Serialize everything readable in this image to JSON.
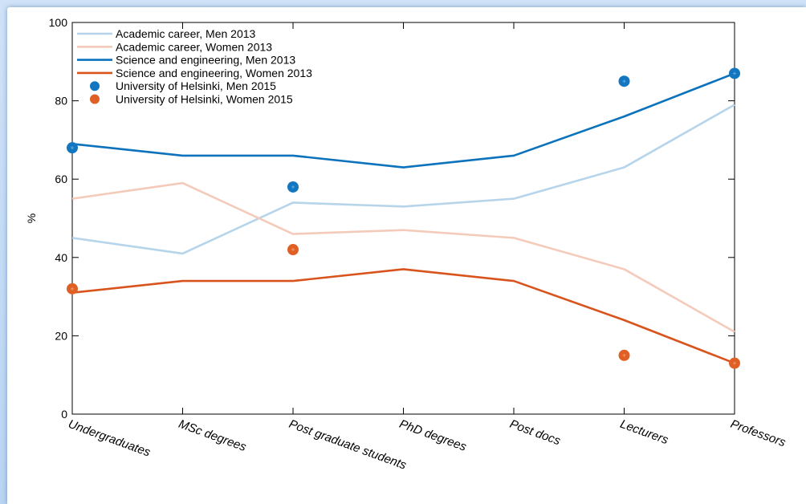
{
  "chart_data": {
    "type": "line",
    "ylabel": "%",
    "ylim": [
      0,
      100
    ],
    "yticks": [
      0,
      20,
      40,
      60,
      80,
      100
    ],
    "categories": [
      "Undergraduates",
      "MSc degrees",
      "Post graduate students",
      "PhD degrees",
      "Post docs",
      "Lecturers",
      "Professors"
    ],
    "legend_position": "top-left",
    "series": [
      {
        "name": "Academic career, Men 2013",
        "kind": "line",
        "color": "#b6d4ea",
        "values": [
          45,
          41,
          54,
          53,
          55,
          63,
          79
        ]
      },
      {
        "name": "Academic career, Women 2013",
        "kind": "line",
        "color": "#f4cbbb",
        "values": [
          55,
          59,
          46,
          47,
          45,
          37,
          21
        ]
      },
      {
        "name": "Science and engineering, Men 2013",
        "kind": "line",
        "color": "#0b72bb",
        "values": [
          69,
          66,
          66,
          63,
          66,
          76,
          87
        ]
      },
      {
        "name": "Science and engineering, Women 2013",
        "kind": "line",
        "color": "#d9541d",
        "values": [
          31,
          34,
          34,
          37,
          34,
          24,
          13
        ]
      },
      {
        "name": "University of Helsinki, Men 2015",
        "kind": "scatter",
        "color": "#1277c0",
        "values": [
          68,
          null,
          58,
          null,
          null,
          85,
          87
        ]
      },
      {
        "name": "University of Helsinki, Women 2015",
        "kind": "scatter",
        "color": "#e05f24",
        "values": [
          32,
          null,
          42,
          null,
          null,
          15,
          13
        ]
      }
    ]
  }
}
